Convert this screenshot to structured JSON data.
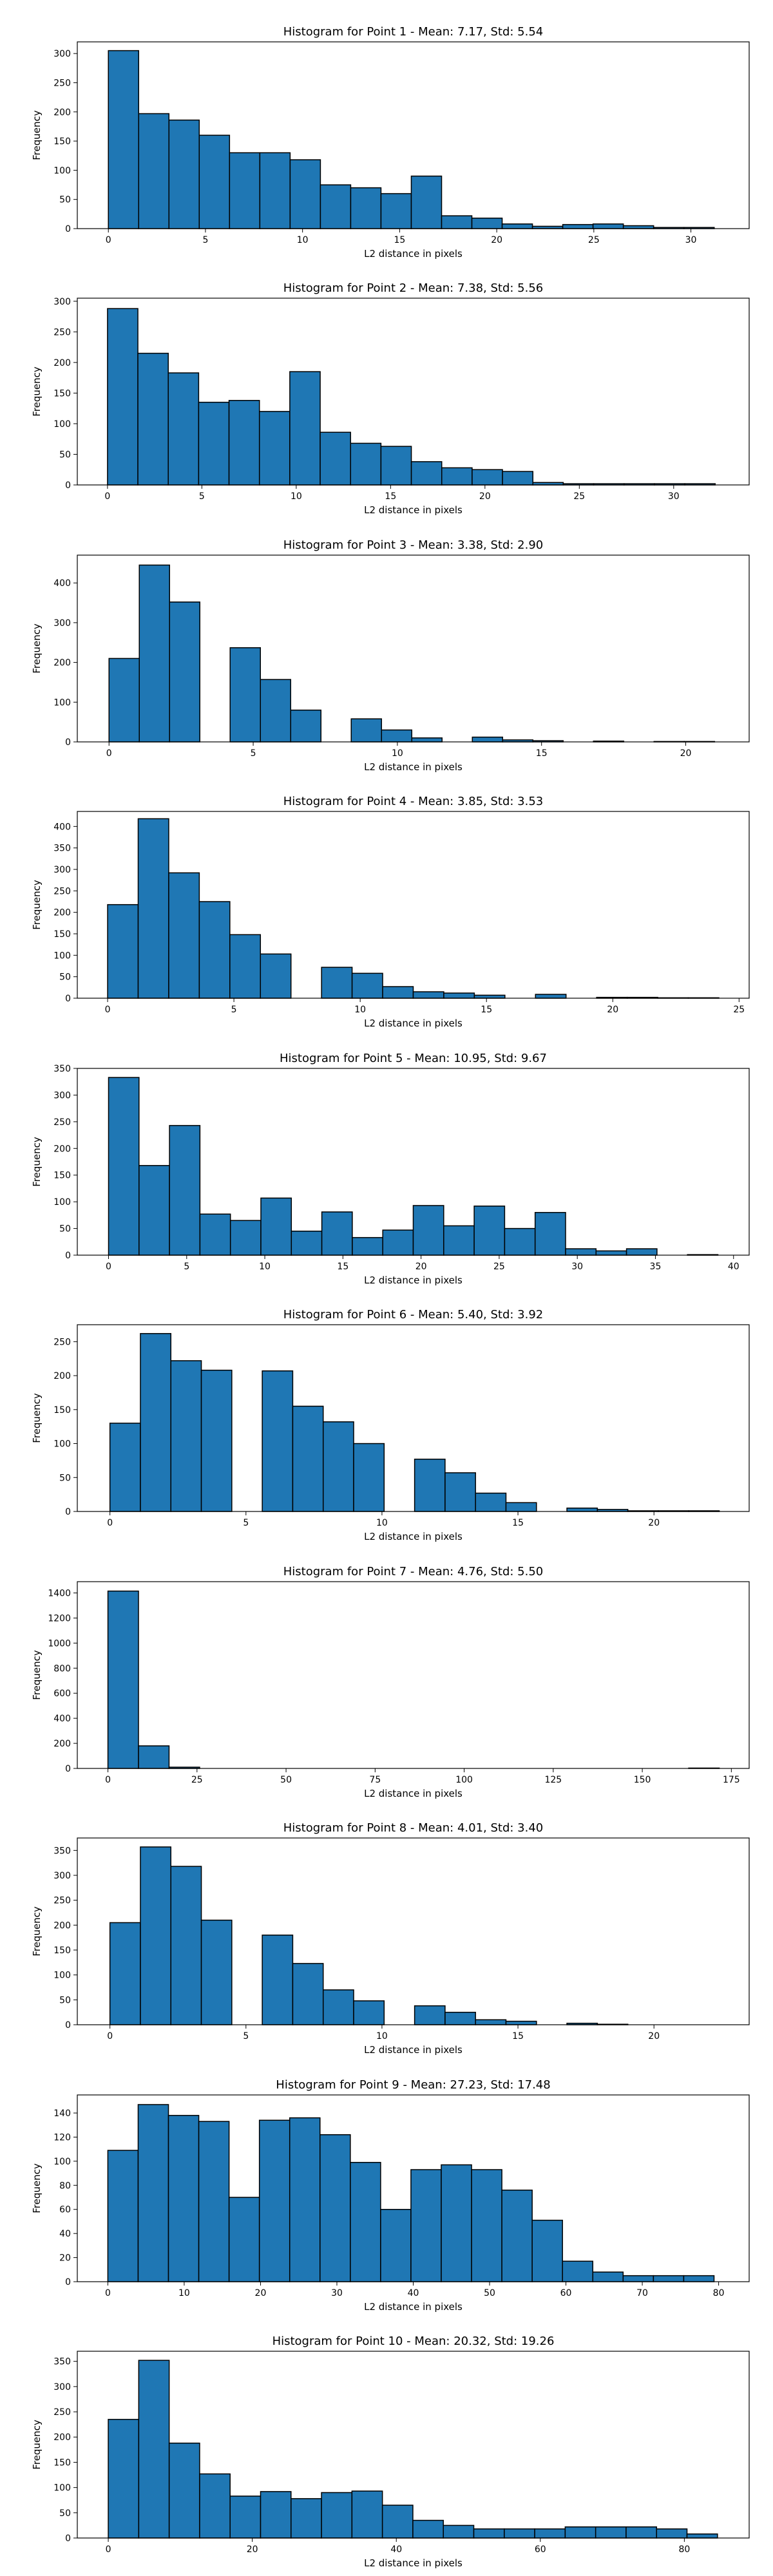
{
  "chart_data": [
    {
      "type": "bar",
      "title": "Histogram for Point 1 - Mean: 7.17, Std: 5.54",
      "xlabel": "L2 distance in pixels",
      "ylabel": "Frequency",
      "grid": false,
      "xlim": [
        -1.6,
        33.0
      ],
      "ylim": [
        0,
        320
      ],
      "xticks": [
        "0",
        "5",
        "10",
        "15",
        "20",
        "25",
        "30"
      ],
      "xtick_values": [
        0,
        5,
        10,
        15,
        20,
        25,
        30
      ],
      "yticks": [
        "0",
        "50",
        "100",
        "150",
        "200",
        "250",
        "300"
      ],
      "ytick_values": [
        0,
        50,
        100,
        150,
        200,
        250,
        300
      ],
      "bin_edges": [
        0,
        1.56,
        3.12,
        4.68,
        6.24,
        7.8,
        9.36,
        10.92,
        12.48,
        14.04,
        15.6,
        17.16,
        18.72,
        20.28,
        21.84,
        23.4,
        24.96,
        26.52,
        28.08,
        29.64,
        31.2
      ],
      "values": [
        305,
        197,
        186,
        160,
        130,
        130,
        118,
        75,
        70,
        60,
        90,
        22,
        18,
        8,
        4,
        7,
        8,
        5,
        2,
        2
      ]
    },
    {
      "type": "bar",
      "title": "Histogram for Point 2 - Mean: 7.38, Std: 5.56",
      "xlabel": "L2 distance in pixels",
      "ylabel": "Frequency",
      "grid": false,
      "xlim": [
        -1.6,
        34.0
      ],
      "ylim": [
        0,
        305
      ],
      "xticks": [
        "0",
        "5",
        "10",
        "15",
        "20",
        "25",
        "30"
      ],
      "xtick_values": [
        0,
        5,
        10,
        15,
        20,
        25,
        30
      ],
      "yticks": [
        "0",
        "50",
        "100",
        "150",
        "200",
        "250",
        "300"
      ],
      "ytick_values": [
        0,
        50,
        100,
        150,
        200,
        250,
        300
      ],
      "bin_edges": [
        0,
        1.61,
        3.22,
        4.83,
        6.44,
        8.05,
        9.66,
        11.27,
        12.88,
        14.49,
        16.1,
        17.71,
        19.32,
        20.93,
        22.54,
        24.15,
        25.76,
        27.37,
        28.98,
        30.59,
        32.2
      ],
      "values": [
        288,
        215,
        183,
        135,
        138,
        120,
        185,
        86,
        68,
        63,
        38,
        28,
        25,
        22,
        4,
        2,
        2,
        2,
        2,
        2
      ]
    },
    {
      "type": "bar",
      "title": "Histogram for Point 3 - Mean: 3.38, Std: 2.90",
      "xlabel": "L2 distance in pixels",
      "ylabel": "Frequency",
      "grid": false,
      "xlim": [
        -1.1,
        22.2
      ],
      "ylim": [
        0,
        470
      ],
      "xticks": [
        "0",
        "5",
        "10",
        "15",
        "20"
      ],
      "xtick_values": [
        0,
        5,
        10,
        15,
        20
      ],
      "yticks": [
        "0",
        "100",
        "200",
        "300",
        "400"
      ],
      "ytick_values": [
        0,
        100,
        200,
        300,
        400
      ],
      "bin_edges": [
        0,
        1.05,
        2.1,
        3.15,
        4.2,
        5.25,
        6.3,
        7.35,
        8.4,
        9.45,
        10.5,
        11.55,
        12.6,
        13.65,
        14.7,
        15.75,
        16.8,
        17.85,
        18.9,
        19.95,
        21.0
      ],
      "values": [
        210,
        445,
        352,
        0,
        237,
        157,
        80,
        0,
        58,
        30,
        10,
        0,
        12,
        5,
        3,
        0,
        2,
        0,
        1,
        1
      ]
    },
    {
      "type": "bar",
      "title": "Histogram for Point 4 - Mean: 3.85, Std: 3.53",
      "xlabel": "L2 distance in pixels",
      "ylabel": "Frequency",
      "grid": false,
      "xlim": [
        -1.2,
        25.4
      ],
      "ylim": [
        0,
        435
      ],
      "xticks": [
        "0",
        "5",
        "10",
        "15",
        "20",
        "25"
      ],
      "xtick_values": [
        0,
        5,
        10,
        15,
        20,
        25
      ],
      "yticks": [
        "0",
        "50",
        "100",
        "150",
        "200",
        "250",
        "300",
        "350",
        "400"
      ],
      "ytick_values": [
        0,
        50,
        100,
        150,
        200,
        250,
        300,
        350,
        400
      ],
      "bin_edges": [
        0,
        1.21,
        2.42,
        3.63,
        4.84,
        6.05,
        7.26,
        8.47,
        9.68,
        10.89,
        12.1,
        13.31,
        14.52,
        15.73,
        16.94,
        18.15,
        19.36,
        20.57,
        21.78,
        22.99,
        24.2
      ],
      "values": [
        218,
        418,
        292,
        225,
        148,
        103,
        0,
        72,
        58,
        27,
        15,
        12,
        7,
        0,
        9,
        0,
        2,
        2,
        1,
        1
      ]
    },
    {
      "type": "bar",
      "title": "Histogram for Point 5 - Mean: 10.95, Std: 9.67",
      "xlabel": "L2 distance in pixels",
      "ylabel": "Frequency",
      "grid": false,
      "xlim": [
        -2.0,
        41.0
      ],
      "ylim": [
        0,
        350
      ],
      "xticks": [
        "0",
        "5",
        "10",
        "15",
        "20",
        "25",
        "30",
        "35",
        "40"
      ],
      "xtick_values": [
        0,
        5,
        10,
        15,
        20,
        25,
        30,
        35,
        40
      ],
      "yticks": [
        "0",
        "50",
        "100",
        "150",
        "200",
        "250",
        "300",
        "350"
      ],
      "ytick_values": [
        0,
        50,
        100,
        150,
        200,
        250,
        300,
        350
      ],
      "bin_edges": [
        0,
        1.95,
        3.9,
        5.85,
        7.8,
        9.75,
        11.7,
        13.65,
        15.6,
        17.55,
        19.5,
        21.45,
        23.4,
        25.35,
        27.3,
        29.25,
        31.2,
        33.15,
        35.1,
        37.05,
        39.0
      ],
      "values": [
        333,
        168,
        243,
        77,
        65,
        107,
        45,
        81,
        33,
        47,
        93,
        55,
        92,
        50,
        80,
        12,
        8,
        12,
        0,
        1
      ]
    },
    {
      "type": "bar",
      "title": "Histogram for Point 6 - Mean: 5.40, Std: 3.92",
      "xlabel": "L2 distance in pixels",
      "ylabel": "Frequency",
      "grid": false,
      "xlim": [
        -1.2,
        23.5
      ],
      "ylim": [
        0,
        275
      ],
      "xticks": [
        "0",
        "5",
        "10",
        "15",
        "20"
      ],
      "xtick_values": [
        0,
        5,
        10,
        15,
        20
      ],
      "yticks": [
        "0",
        "50",
        "100",
        "150",
        "200",
        "250"
      ],
      "ytick_values": [
        0,
        50,
        100,
        150,
        200,
        250
      ],
      "bin_edges": [
        0,
        1.12,
        2.24,
        3.36,
        4.48,
        5.6,
        6.72,
        7.84,
        8.96,
        10.08,
        11.2,
        12.32,
        13.44,
        14.56,
        15.68,
        16.8,
        17.92,
        19.04,
        20.16,
        21.28,
        22.4
      ],
      "values": [
        130,
        262,
        222,
        208,
        0,
        207,
        155,
        132,
        100,
        0,
        77,
        57,
        27,
        13,
        0,
        5,
        3,
        1,
        1,
        1
      ]
    },
    {
      "type": "bar",
      "title": "Histogram for Point 7 - Mean: 4.76, Std: 5.50",
      "xlabel": "L2 distance in pixels",
      "ylabel": "Frequency",
      "grid": false,
      "xlim": [
        -8.6,
        180.0
      ],
      "ylim": [
        0,
        1490
      ],
      "xticks": [
        "0",
        "25",
        "50",
        "75",
        "100",
        "125",
        "150",
        "175"
      ],
      "xtick_values": [
        0,
        25,
        50,
        75,
        100,
        125,
        150,
        175
      ],
      "yticks": [
        "0",
        "200",
        "400",
        "600",
        "800",
        "1000",
        "1200",
        "1400"
      ],
      "ytick_values": [
        0,
        200,
        400,
        600,
        800,
        1000,
        1200,
        1400
      ],
      "bin_edges": [
        0,
        8.58,
        17.16,
        25.74,
        34.32,
        42.9,
        51.48,
        60.06,
        68.64,
        77.22,
        85.8,
        94.38,
        102.96,
        111.54,
        120.12,
        128.7,
        137.28,
        145.86,
        154.44,
        163.02,
        171.6
      ],
      "values": [
        1415,
        180,
        10,
        0,
        0,
        0,
        0,
        0,
        0,
        0,
        0,
        0,
        0,
        0,
        0,
        0,
        0,
        0,
        0,
        3
      ]
    },
    {
      "type": "bar",
      "title": "Histogram for Point 8 - Mean: 4.01, Std: 3.40",
      "xlabel": "L2 distance in pixels",
      "ylabel": "Frequency",
      "grid": false,
      "xlim": [
        -1.2,
        23.5
      ],
      "ylim": [
        0,
        375
      ],
      "xticks": [
        "0",
        "5",
        "10",
        "15",
        "20"
      ],
      "xtick_values": [
        0,
        5,
        10,
        15,
        20
      ],
      "yticks": [
        "0",
        "50",
        "100",
        "150",
        "200",
        "250",
        "300",
        "350"
      ],
      "ytick_values": [
        0,
        50,
        100,
        150,
        200,
        250,
        300,
        350
      ],
      "bin_edges": [
        0,
        1.12,
        2.24,
        3.36,
        4.48,
        5.6,
        6.72,
        7.84,
        8.96,
        10.08,
        11.2,
        12.32,
        13.44,
        14.56,
        15.68,
        16.8,
        17.92,
        19.04,
        20.16,
        21.28,
        22.4
      ],
      "values": [
        205,
        357,
        318,
        210,
        0,
        180,
        123,
        70,
        48,
        0,
        38,
        25,
        10,
        7,
        0,
        3,
        1,
        0,
        0,
        0
      ]
    },
    {
      "type": "bar",
      "title": "Histogram for Point 9 - Mean: 27.23, Std: 17.48",
      "xlabel": "L2 distance in pixels",
      "ylabel": "Frequency",
      "grid": false,
      "xlim": [
        -4.0,
        84.0
      ],
      "ylim": [
        0,
        155
      ],
      "xticks": [
        "0",
        "10",
        "20",
        "30",
        "40",
        "50",
        "60",
        "70",
        "80"
      ],
      "xtick_values": [
        0,
        10,
        20,
        30,
        40,
        50,
        60,
        70,
        80
      ],
      "yticks": [
        "0",
        "20",
        "40",
        "60",
        "80",
        "100",
        "120",
        "140"
      ],
      "ytick_values": [
        0,
        20,
        40,
        60,
        80,
        100,
        120,
        140
      ],
      "bin_edges": [
        0,
        3.97,
        7.94,
        11.91,
        15.88,
        19.85,
        23.82,
        27.79,
        31.76,
        35.73,
        39.7,
        43.67,
        47.64,
        51.61,
        55.58,
        59.55,
        63.52,
        67.49,
        71.46,
        75.43,
        79.4
      ],
      "values": [
        109,
        147,
        138,
        133,
        70,
        134,
        136,
        122,
        99,
        60,
        93,
        97,
        93,
        76,
        51,
        17,
        8,
        5,
        5,
        5
      ]
    },
    {
      "type": "bar",
      "title": "Histogram for Point 10 - Mean: 20.32, Std: 19.26",
      "xlabel": "L2 distance in pixels",
      "ylabel": "Frequency",
      "grid": false,
      "xlim": [
        -4.3,
        89.0
      ],
      "ylim": [
        0,
        370
      ],
      "xticks": [
        "0",
        "20",
        "40",
        "60",
        "80"
      ],
      "xtick_values": [
        0,
        20,
        40,
        60,
        80
      ],
      "yticks": [
        "0",
        "50",
        "100",
        "150",
        "200",
        "250",
        "300",
        "350"
      ],
      "ytick_values": [
        0,
        50,
        100,
        150,
        200,
        250,
        300,
        350
      ],
      "bin_edges": [
        0,
        4.23,
        8.46,
        12.69,
        16.92,
        21.15,
        25.38,
        29.61,
        33.84,
        38.07,
        42.3,
        46.53,
        50.76,
        54.99,
        59.22,
        63.45,
        67.68,
        71.91,
        76.14,
        80.37,
        84.6
      ],
      "values": [
        235,
        352,
        188,
        127,
        83,
        92,
        78,
        90,
        93,
        65,
        35,
        25,
        18,
        18,
        18,
        22,
        22,
        22,
        18,
        8
      ]
    }
  ]
}
